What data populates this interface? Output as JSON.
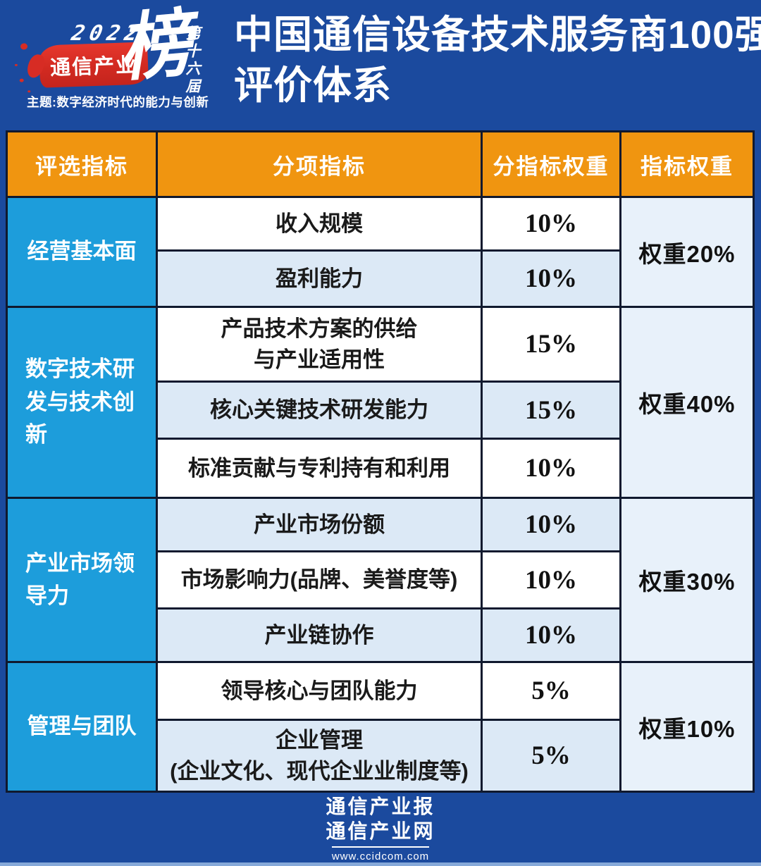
{
  "header": {
    "logo": {
      "year": "2022",
      "brand": "通信产业",
      "rank_char": "榜",
      "edition": "第十六届",
      "theme": "主题:数字经济时代的能力与创新"
    },
    "title_line1": "中国通信设备技术服务商100强",
    "title_line2": "评价体系"
  },
  "table": {
    "columns": [
      "评选指标",
      "分项指标",
      "分指标权重",
      "指标权重"
    ],
    "groups": [
      {
        "name": "经营基本面",
        "weight": "权重20%",
        "rows": [
          {
            "label": "收入规模",
            "pct": "10%"
          },
          {
            "label": "盈利能力",
            "pct": "10%"
          }
        ]
      },
      {
        "name": "数字技术研发与技术创新",
        "weight": "权重40%",
        "rows": [
          {
            "label": "产品技术方案的供给\n与产业适用性",
            "pct": "15%"
          },
          {
            "label": "核心关键技术研发能力",
            "pct": "15%"
          },
          {
            "label": "标准贡献与专利持有和利用",
            "pct": "10%"
          }
        ]
      },
      {
        "name": "产业市场领导力",
        "weight": "权重30%",
        "rows": [
          {
            "label": "产业市场份额",
            "pct": "10%"
          },
          {
            "label": "市场影响力(品牌、美誉度等)",
            "pct": "10%"
          },
          {
            "label": "产业链协作",
            "pct": "10%"
          }
        ]
      },
      {
        "name": "管理与团队",
        "weight": "权重10%",
        "rows": [
          {
            "label": "领导核心与团队能力",
            "pct": "5%"
          },
          {
            "label": "企业管理\n(企业文化、现代企业业制度等)",
            "pct": "5%"
          }
        ]
      }
    ]
  },
  "footer": {
    "line1": "通信产业报",
    "line2": "通信产业网",
    "url": "www.ccidcom.com"
  },
  "colors": {
    "background_blue": "#1b4a9e",
    "header_orange": "#f09510",
    "group_blue": "#1d9ddb",
    "row_alt_blue": "#dce9f6",
    "weight_cell_blue": "#e8f1fa",
    "banner_red": "#d72c24",
    "grid_border": "#10192e",
    "bottom_strip": "#86a9d9"
  },
  "chart_data": {
    "type": "table",
    "title": "中国通信设备技术服务商100强 评价体系",
    "columns": [
      "评选指标",
      "分项指标",
      "分指标权重",
      "指标权重"
    ],
    "rows": [
      [
        "经营基本面",
        "收入规模",
        "10%",
        "权重20%"
      ],
      [
        "经营基本面",
        "盈利能力",
        "10%",
        "权重20%"
      ],
      [
        "数字技术研发与技术创新",
        "产品技术方案的供给与产业适用性",
        "15%",
        "权重40%"
      ],
      [
        "数字技术研发与技术创新",
        "核心关键技术研发能力",
        "15%",
        "权重40%"
      ],
      [
        "数字技术研发与技术创新",
        "标准贡献与专利持有和利用",
        "10%",
        "权重40%"
      ],
      [
        "产业市场领导力",
        "产业市场份额",
        "10%",
        "权重30%"
      ],
      [
        "产业市场领导力",
        "市场影响力(品牌、美誉度等)",
        "10%",
        "权重30%"
      ],
      [
        "产业市场领导力",
        "产业链协作",
        "10%",
        "权重30%"
      ],
      [
        "管理与团队",
        "领导核心与团队能力",
        "5%",
        "权重10%"
      ],
      [
        "管理与团队",
        "企业管理(企业文化、现代企业业制度等)",
        "5%",
        "权重10%"
      ]
    ],
    "group_weights": {
      "经营基本面": 20,
      "数字技术研发与技术创新": 40,
      "产业市场领导力": 30,
      "管理与团队": 10
    }
  }
}
